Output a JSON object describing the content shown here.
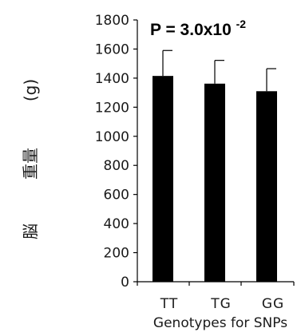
{
  "chart_data": {
    "type": "bar",
    "categories": [
      "TT",
      "TG",
      "GG"
    ],
    "values": [
      1415,
      1362,
      1310
    ],
    "errors": [
      175,
      160,
      155
    ],
    "xlabel": "Genotypes for SNPs",
    "ylabel_chars": [
      "脳",
      "重量",
      "(g)"
    ],
    "ylim": [
      0,
      1800
    ],
    "yticks": [
      "0",
      "200",
      "400",
      "600",
      "800",
      "1000",
      "1200",
      "1400",
      "1600",
      "1800"
    ],
    "annotation": {
      "prefix": "P = 3.0x10",
      "exponent": "-2"
    },
    "bar_color": "#000000",
    "grid": false
  }
}
